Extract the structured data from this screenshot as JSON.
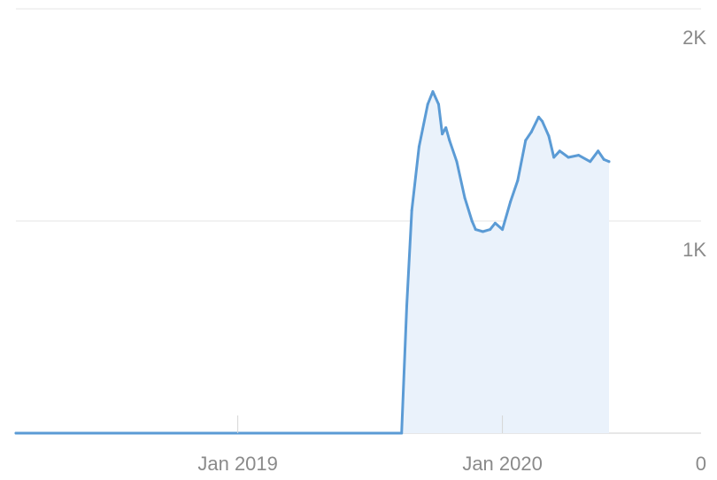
{
  "chart_data": {
    "type": "area",
    "title": "",
    "xlabel": "",
    "ylabel": "",
    "x_ticks": [
      {
        "label": "Jan 2019",
        "date": "2019-01-01"
      },
      {
        "label": "Jan 2020",
        "date": "2020-01-01"
      }
    ],
    "y_ticks": [
      {
        "label": "0",
        "value": 0
      },
      {
        "label": "1K",
        "value": 1000
      },
      {
        "label": "2K",
        "value": 2000
      }
    ],
    "xlim": [
      "2018-03-01",
      "2020-10-01"
    ],
    "ylim": [
      0,
      2000
    ],
    "grid": true,
    "y_axis_side": "right",
    "series": [
      {
        "color": "#5b9bd5",
        "fill": "#eaf2fb",
        "points": [
          {
            "date": "2018-03-01",
            "value": 0
          },
          {
            "date": "2019-08-15",
            "value": 0
          },
          {
            "date": "2019-08-22",
            "value": 600
          },
          {
            "date": "2019-08-29",
            "value": 1050
          },
          {
            "date": "2019-09-08",
            "value": 1350
          },
          {
            "date": "2019-09-20",
            "value": 1550
          },
          {
            "date": "2019-09-27",
            "value": 1610
          },
          {
            "date": "2019-10-05",
            "value": 1550
          },
          {
            "date": "2019-10-10",
            "value": 1410
          },
          {
            "date": "2019-10-15",
            "value": 1440
          },
          {
            "date": "2019-10-20",
            "value": 1380
          },
          {
            "date": "2019-10-30",
            "value": 1280
          },
          {
            "date": "2019-11-10",
            "value": 1110
          },
          {
            "date": "2019-11-20",
            "value": 1000
          },
          {
            "date": "2019-11-25",
            "value": 960
          },
          {
            "date": "2019-12-05",
            "value": 950
          },
          {
            "date": "2019-12-15",
            "value": 960
          },
          {
            "date": "2019-12-22",
            "value": 990
          },
          {
            "date": "2020-01-01",
            "value": 960
          },
          {
            "date": "2020-01-12",
            "value": 1090
          },
          {
            "date": "2020-01-22",
            "value": 1190
          },
          {
            "date": "2020-02-02",
            "value": 1380
          },
          {
            "date": "2020-02-10",
            "value": 1420
          },
          {
            "date": "2020-02-20",
            "value": 1490
          },
          {
            "date": "2020-02-25",
            "value": 1470
          },
          {
            "date": "2020-03-05",
            "value": 1400
          },
          {
            "date": "2020-03-12",
            "value": 1300
          },
          {
            "date": "2020-03-20",
            "value": 1330
          },
          {
            "date": "2020-04-01",
            "value": 1300
          },
          {
            "date": "2020-04-15",
            "value": 1310
          },
          {
            "date": "2020-05-01",
            "value": 1280
          },
          {
            "date": "2020-05-12",
            "value": 1330
          },
          {
            "date": "2020-05-20",
            "value": 1290
          },
          {
            "date": "2020-05-27",
            "value": 1280
          }
        ]
      }
    ]
  }
}
